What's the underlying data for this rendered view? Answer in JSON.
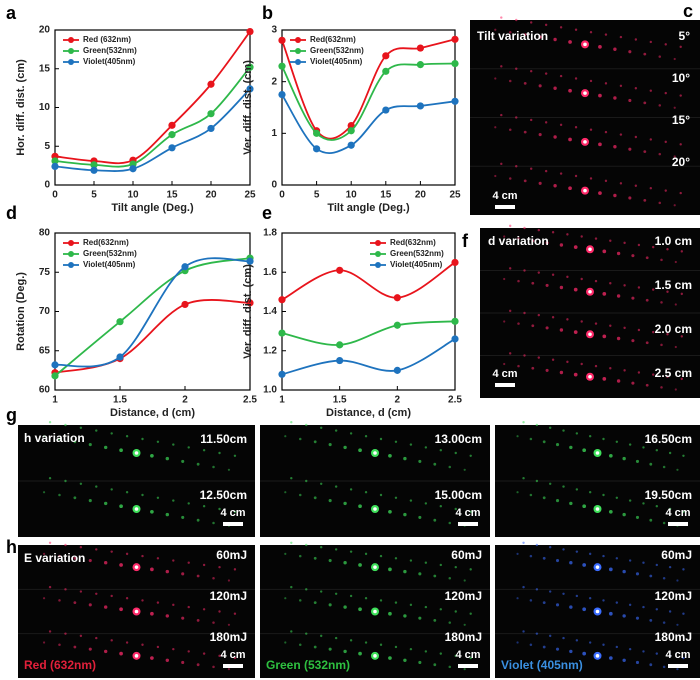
{
  "chart_data": [
    {
      "type": "line",
      "xlabel": "Tilt angle (Deg.)",
      "ylabel": "Hor. diff. dist. (cm)",
      "x": [
        0,
        5,
        10,
        15,
        20,
        25
      ],
      "xlim": [
        0,
        25
      ],
      "xticks": [
        0,
        5,
        10,
        15,
        20,
        25
      ],
      "ylim": [
        0,
        20
      ],
      "yticks": [
        0,
        5,
        10,
        15,
        20
      ],
      "legend": "upper left",
      "series": [
        {
          "name": "Red (632nm)",
          "color": "#e8141c",
          "values": [
            3.7,
            3.1,
            3.2,
            7.7,
            13,
            19.8
          ]
        },
        {
          "name": "Green(532nm)",
          "color": "#2eb84a",
          "values": [
            3.1,
            2.6,
            2.7,
            6.5,
            9.2,
            15.2
          ]
        },
        {
          "name": "Violet(405nm)",
          "color": "#1e73be",
          "values": [
            2.4,
            1.9,
            2.1,
            4.8,
            7.3,
            12.4
          ]
        }
      ]
    },
    {
      "type": "line",
      "xlabel": "Tilt angle (Deg.)",
      "ylabel": "Ver. diff. dist. (cm)",
      "x": [
        0,
        5,
        10,
        15,
        20,
        25
      ],
      "xlim": [
        0,
        25
      ],
      "xticks": [
        0,
        5,
        10,
        15,
        20,
        25
      ],
      "ylim": [
        0,
        3
      ],
      "yticks": [
        0,
        1,
        2,
        3
      ],
      "legend": "upper left",
      "series": [
        {
          "name": "Red(632nm)",
          "color": "#e8141c",
          "values": [
            2.8,
            1.05,
            1.15,
            2.5,
            2.65,
            2.82
          ]
        },
        {
          "name": "Green(532nm)",
          "color": "#2eb84a",
          "values": [
            2.3,
            1.0,
            1.05,
            2.2,
            2.33,
            2.35
          ]
        },
        {
          "name": "Violet(405nm)",
          "color": "#1e73be",
          "values": [
            1.75,
            0.7,
            0.77,
            1.45,
            1.53,
            1.62
          ]
        }
      ]
    },
    {
      "type": "line",
      "xlabel": "Distance, d (cm)",
      "ylabel": "Rotation (Deg.)",
      "x": [
        1,
        1.5,
        2,
        2.5
      ],
      "xlim": [
        1,
        2.5
      ],
      "xticks": [
        1,
        1.5,
        2,
        2.5
      ],
      "ylim": [
        60,
        80
      ],
      "yticks": [
        60,
        65,
        70,
        75,
        80
      ],
      "legend": "upper left",
      "series": [
        {
          "name": "Red(632nm)",
          "color": "#e8141c",
          "values": [
            62.2,
            64,
            70.9,
            71.1
          ]
        },
        {
          "name": "Green(532nm)",
          "color": "#2eb84a",
          "values": [
            61.8,
            68.7,
            75.2,
            76.8
          ]
        },
        {
          "name": "Violet(405nm)",
          "color": "#1e73be",
          "values": [
            63.2,
            64.2,
            75.7,
            76.4
          ]
        }
      ]
    },
    {
      "type": "line",
      "xlabel": "Distance, d (cm)",
      "ylabel": "Ver. diff. dist. (cm)",
      "x": [
        1,
        1.5,
        2,
        2.5
      ],
      "xlim": [
        1,
        2.5
      ],
      "xticks": [
        1,
        1.5,
        2,
        2.5
      ],
      "ylim": [
        1,
        1.8
      ],
      "yticks": [
        {
          "value": 1,
          "label": "1.0"
        },
        1.2,
        1.4,
        1.6,
        1.8
      ],
      "legend": "upper right",
      "series": [
        {
          "name": "Red(632nm)",
          "color": "#e8141c",
          "values": [
            1.46,
            1.61,
            1.47,
            1.65
          ]
        },
        {
          "name": "Green(532nm)",
          "color": "#2eb84a",
          "values": [
            1.29,
            1.23,
            1.33,
            1.35
          ]
        },
        {
          "name": "Violet(405nm)",
          "color": "#1e73be",
          "values": [
            1.08,
            1.15,
            1.1,
            1.26
          ]
        }
      ]
    }
  ],
  "panel_labels": [
    "a",
    "b",
    "c",
    "d",
    "e",
    "f",
    "g",
    "h"
  ],
  "image_panels": {
    "c": {
      "title": "Tilt variation",
      "labels": [
        "5°",
        "10°",
        "15°",
        "20°"
      ],
      "scale": "4 cm"
    },
    "f": {
      "title": "d variation",
      "labels": [
        "1.0 cm",
        "1.5 cm",
        "2.0 cm",
        "2.5 cm"
      ],
      "scale": "4 cm"
    },
    "g": {
      "title": "h variation",
      "panels": [
        {
          "labels": [
            "11.50cm",
            "12.50cm"
          ],
          "scale": "4 cm"
        },
        {
          "labels": [
            "13.00cm",
            "15.00cm"
          ],
          "scale": "4 cm"
        },
        {
          "labels": [
            "16.50cm",
            "19.50cm"
          ],
          "scale": "4 cm"
        }
      ]
    },
    "h": {
      "title": "E variation",
      "panels": [
        {
          "labels": [
            "60mJ",
            "120mJ",
            "180mJ"
          ],
          "scale": "4 cm",
          "caption": "Red (632nm)"
        },
        {
          "labels": [
            "60mJ",
            "120mJ",
            "180mJ"
          ],
          "scale": "4 cm",
          "caption": "Green (532nm)"
        },
        {
          "labels": [
            "60mJ",
            "120mJ",
            "180mJ"
          ],
          "scale": "4 cm",
          "caption": "Violet (405nm)"
        }
      ]
    }
  }
}
